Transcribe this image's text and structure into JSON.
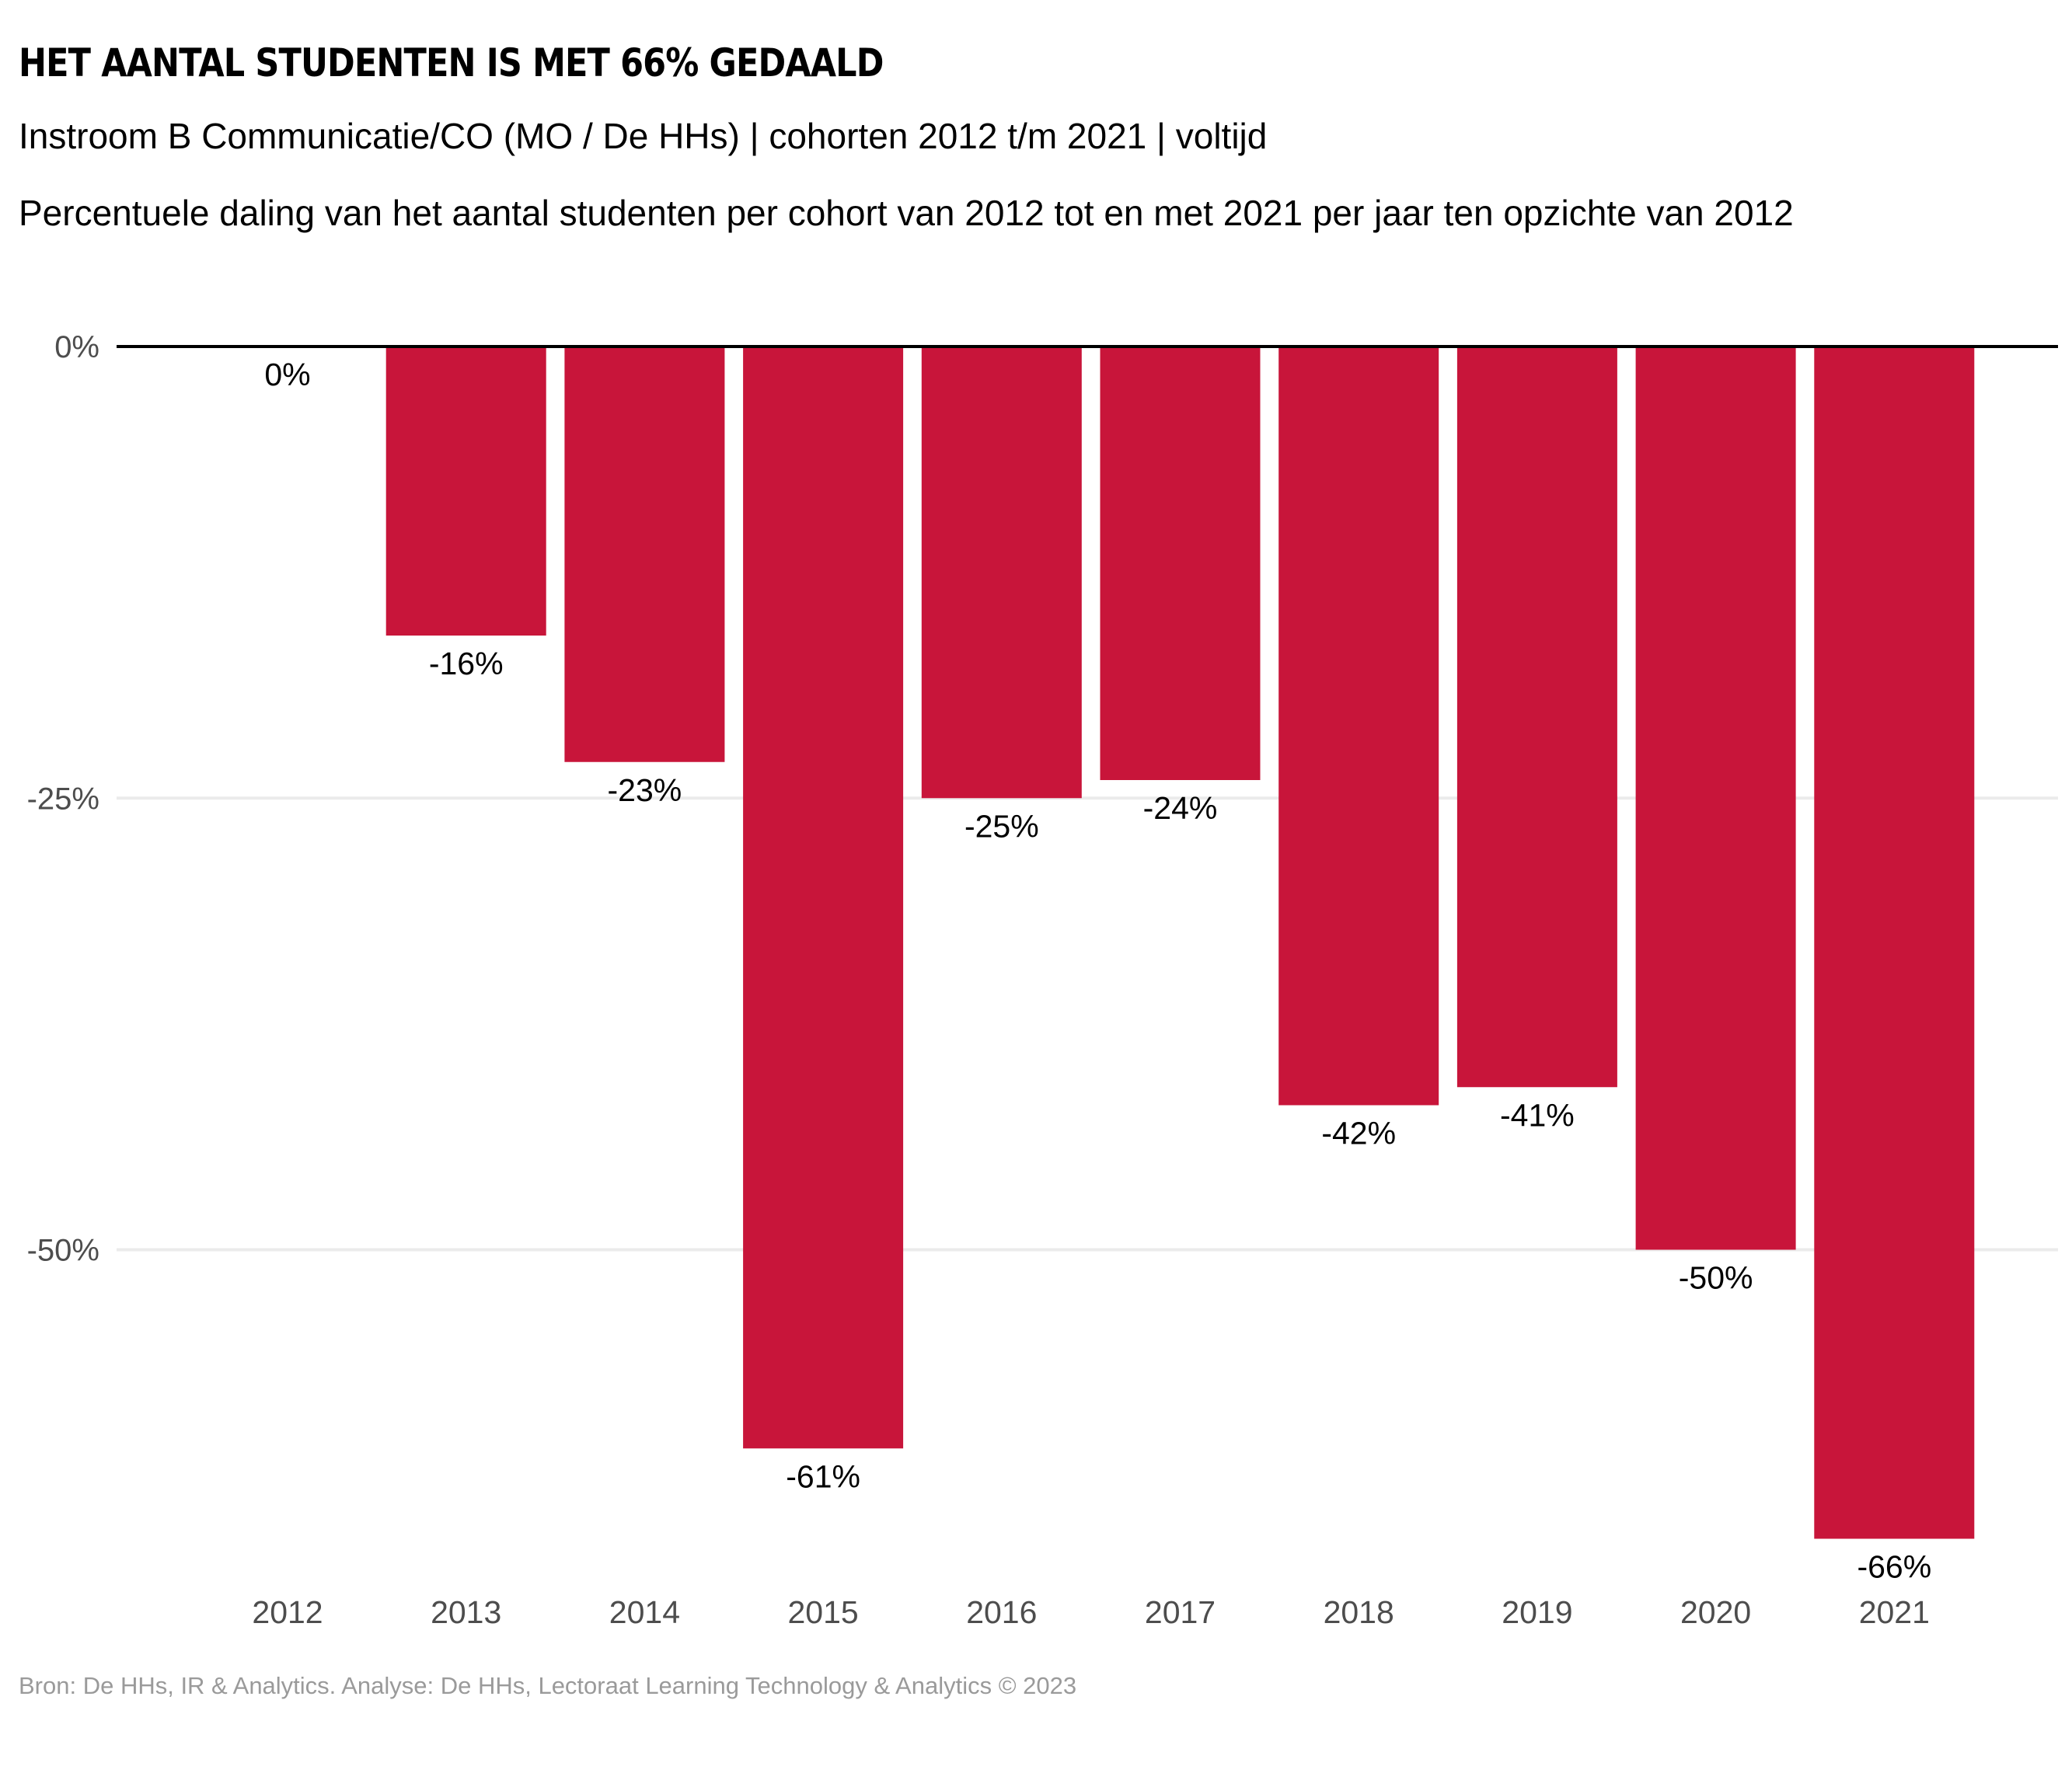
{
  "header": {
    "title": "HET AANTAL STUDENTEN IS MET 66% GEDAALD",
    "subtitle": "Instroom B Communicatie/CO (MO / De HHs) | cohorten 2012 t/m 2021 | voltijd",
    "caption": "Percentuele daling van het aantal studenten per cohort van 2012 tot en met 2021 per jaar ten opzichte van 2012"
  },
  "footer": {
    "source": "Bron: De HHs, IR & Analytics. Analyse: De HHs, Lectoraat Learning Technology & Analytics © 2023"
  },
  "colors": {
    "bar": "#c8153a",
    "gridline": "#ebebeb",
    "zero_line": "#000000"
  },
  "chart_data": {
    "type": "bar",
    "title": "HET AANTAL STUDENTEN IS MET 66% GEDAALD",
    "xlabel": "",
    "ylabel": "",
    "categories": [
      "2012",
      "2013",
      "2014",
      "2015",
      "2016",
      "2017",
      "2018",
      "2019",
      "2020",
      "2021"
    ],
    "values": [
      0,
      -16,
      -23,
      -61,
      -25,
      -24,
      -42,
      -41,
      -50,
      -66
    ],
    "data_labels": [
      "0%",
      "-16%",
      "-23%",
      "-61%",
      "-25%",
      "-24%",
      "-42%",
      "-41%",
      "-50%",
      "-66%"
    ],
    "yticks": [
      0,
      -25,
      -50
    ],
    "ytick_labels": [
      "0%",
      "-25%",
      "-50%"
    ],
    "ylim": [
      -70,
      0
    ],
    "grid": true,
    "legend": "none"
  }
}
